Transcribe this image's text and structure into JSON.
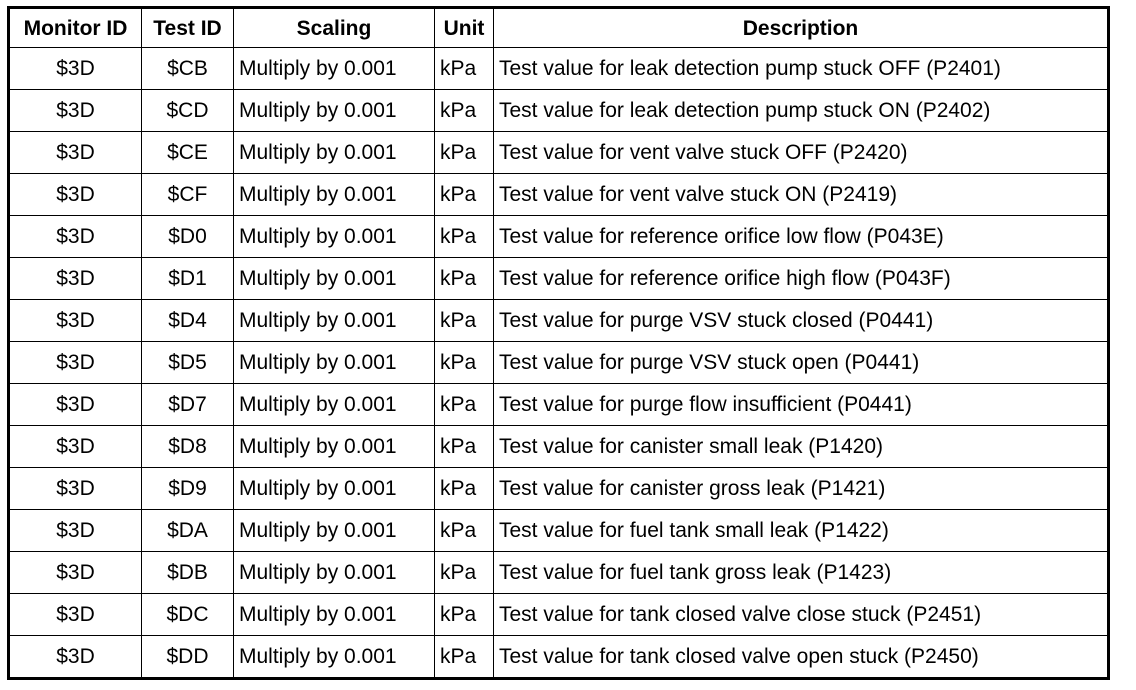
{
  "table": {
    "headers": [
      "Monitor ID",
      "Test ID",
      "Scaling",
      "Unit",
      "Description"
    ],
    "rows": [
      [
        "$3D",
        "$CB",
        "Multiply by 0.001",
        "kPa",
        "Test value for leak detection pump stuck OFF (P2401)"
      ],
      [
        "$3D",
        "$CD",
        "Multiply by 0.001",
        "kPa",
        "Test value for leak detection pump stuck ON (P2402)"
      ],
      [
        "$3D",
        "$CE",
        "Multiply by 0.001",
        "kPa",
        "Test value for vent valve stuck OFF (P2420)"
      ],
      [
        "$3D",
        "$CF",
        "Multiply by 0.001",
        "kPa",
        "Test value for vent valve stuck ON (P2419)"
      ],
      [
        "$3D",
        "$D0",
        "Multiply by 0.001",
        "kPa",
        "Test value for reference orifice low flow (P043E)"
      ],
      [
        "$3D",
        "$D1",
        "Multiply by 0.001",
        "kPa",
        "Test value for reference orifice high flow (P043F)"
      ],
      [
        "$3D",
        "$D4",
        "Multiply by 0.001",
        "kPa",
        "Test value for purge VSV stuck closed (P0441)"
      ],
      [
        "$3D",
        "$D5",
        "Multiply by 0.001",
        "kPa",
        "Test value for purge VSV stuck open (P0441)"
      ],
      [
        "$3D",
        "$D7",
        "Multiply by 0.001",
        "kPa",
        "Test value for purge flow insufficient (P0441)"
      ],
      [
        "$3D",
        "$D8",
        "Multiply by 0.001",
        "kPa",
        "Test value for canister small leak (P1420)"
      ],
      [
        "$3D",
        "$D9",
        "Multiply by 0.001",
        "kPa",
        "Test value for canister gross leak (P1421)"
      ],
      [
        "$3D",
        "$DA",
        "Multiply by 0.001",
        "kPa",
        "Test value for fuel tank small leak (P1422)"
      ],
      [
        "$3D",
        "$DB",
        "Multiply by 0.001",
        "kPa",
        "Test value for fuel tank gross leak (P1423)"
      ],
      [
        "$3D",
        "$DC",
        "Multiply by 0.001",
        "kPa",
        "Test value for tank closed valve close stuck (P2451)"
      ],
      [
        "$3D",
        "$DD",
        "Multiply by 0.001",
        "kPa",
        "Test value for tank closed valve open stuck (P2450)"
      ]
    ]
  }
}
